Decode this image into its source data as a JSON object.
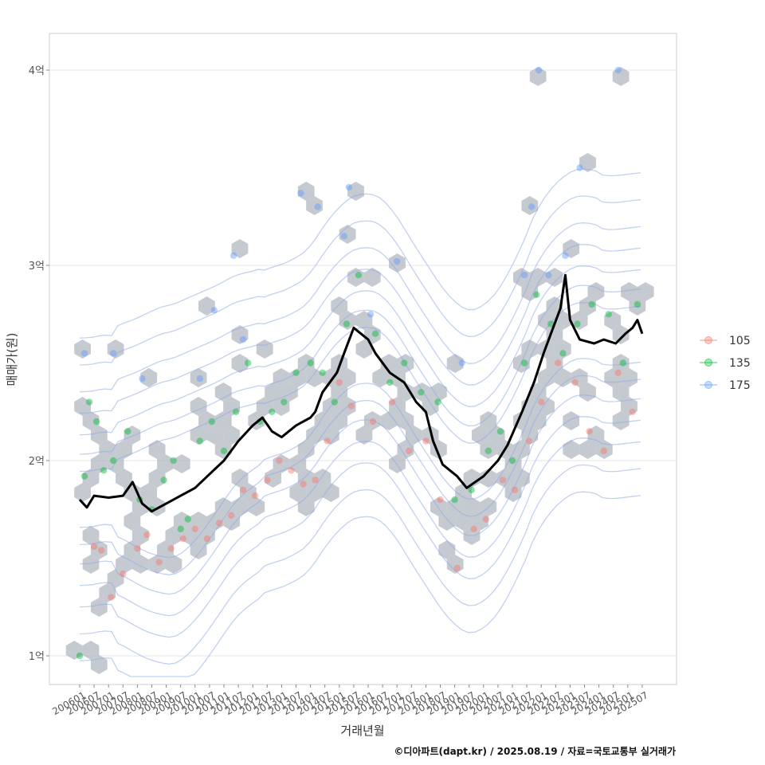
{
  "chart_data": {
    "type": "scatter",
    "title": "",
    "xlabel": "거래년월",
    "ylabel": "매매가(원)",
    "caption": "©디아파트(dapt.kr) / 2025.08.19 / 자료=국토교통부 실거래가",
    "ylim": [
      0.85,
      4.18
    ],
    "y_ticks": [
      {
        "value": 1,
        "label": "1억"
      },
      {
        "value": 2,
        "label": "2억"
      },
      {
        "value": 3,
        "label": "3억"
      },
      {
        "value": 4,
        "label": "4억"
      }
    ],
    "x_ticks": [
      "200601",
      "200607",
      "200701",
      "200707",
      "200801",
      "200807",
      "200901",
      "200907",
      "201001",
      "201007",
      "201101",
      "201107",
      "201201",
      "201207",
      "201301",
      "201307",
      "201401",
      "201407",
      "201501",
      "201507",
      "201601",
      "201607",
      "201701",
      "201707",
      "201801",
      "201807",
      "201901",
      "201907",
      "202001",
      "202007",
      "202101",
      "202107",
      "202201",
      "202207",
      "202301",
      "202307",
      "202401",
      "202407",
      "202501",
      "202507"
    ],
    "grid": true,
    "legend_position": "right",
    "series": [
      {
        "name": "105",
        "color": "#F8766D",
        "points": [
          [
            "2006-07",
            1.56
          ],
          [
            "2006-10",
            1.54
          ],
          [
            "2007-02",
            1.3
          ],
          [
            "2007-07",
            1.42
          ],
          [
            "2008-01",
            1.55
          ],
          [
            "2008-05",
            1.62
          ],
          [
            "2008-10",
            1.48
          ],
          [
            "2009-03",
            1.55
          ],
          [
            "2009-08",
            1.6
          ],
          [
            "2010-01",
            1.65
          ],
          [
            "2010-06",
            1.6
          ],
          [
            "2010-11",
            1.68
          ],
          [
            "2011-04",
            1.72
          ],
          [
            "2011-09",
            1.85
          ],
          [
            "2012-02",
            1.82
          ],
          [
            "2012-07",
            1.9
          ],
          [
            "2012-12",
            2.0
          ],
          [
            "2013-05",
            1.95
          ],
          [
            "2013-10",
            1.88
          ],
          [
            "2014-03",
            1.9
          ],
          [
            "2014-08",
            2.1
          ],
          [
            "2015-01",
            2.4
          ],
          [
            "2015-06",
            2.28
          ],
          [
            "2016-03",
            2.2
          ],
          [
            "2016-11",
            2.3
          ],
          [
            "2017-06",
            2.05
          ],
          [
            "2018-01",
            2.1
          ],
          [
            "2018-07",
            1.8
          ],
          [
            "2019-02",
            1.45
          ],
          [
            "2019-09",
            1.65
          ],
          [
            "2020-02",
            1.7
          ],
          [
            "2020-09",
            1.9
          ],
          [
            "2021-02",
            1.85
          ],
          [
            "2021-08",
            2.1
          ],
          [
            "2022-01",
            2.3
          ],
          [
            "2022-08",
            2.5
          ],
          [
            "2023-03",
            2.4
          ],
          [
            "2023-09",
            2.15
          ],
          [
            "2024-03",
            2.05
          ],
          [
            "2024-09",
            2.45
          ],
          [
            "2025-03",
            2.25
          ]
        ]
      },
      {
        "name": "135",
        "color": "#00BA38",
        "points": [
          [
            "2006-01",
            1.0
          ],
          [
            "2006-03",
            1.92
          ],
          [
            "2006-05",
            2.3
          ],
          [
            "2006-08",
            2.2
          ],
          [
            "2006-11",
            1.95
          ],
          [
            "2007-03",
            2.0
          ],
          [
            "2007-09",
            2.15
          ],
          [
            "2008-02",
            1.8
          ],
          [
            "2008-07",
            1.75
          ],
          [
            "2008-12",
            1.9
          ],
          [
            "2009-04",
            2.0
          ],
          [
            "2009-07",
            1.65
          ],
          [
            "2009-10",
            1.7
          ],
          [
            "2010-03",
            2.1
          ],
          [
            "2010-08",
            2.2
          ],
          [
            "2011-01",
            2.05
          ],
          [
            "2011-06",
            2.25
          ],
          [
            "2011-11",
            2.5
          ],
          [
            "2012-04",
            2.2
          ],
          [
            "2012-09",
            2.25
          ],
          [
            "2013-02",
            2.3
          ],
          [
            "2013-07",
            2.45
          ],
          [
            "2014-01",
            2.5
          ],
          [
            "2014-06",
            2.45
          ],
          [
            "2014-11",
            2.3
          ],
          [
            "2015-04",
            2.7
          ],
          [
            "2015-09",
            2.95
          ],
          [
            "2016-04",
            2.65
          ],
          [
            "2016-10",
            2.4
          ],
          [
            "2017-04",
            2.5
          ],
          [
            "2017-11",
            2.35
          ],
          [
            "2018-06",
            2.3
          ],
          [
            "2019-01",
            1.8
          ],
          [
            "2019-08",
            1.85
          ],
          [
            "2020-03",
            2.05
          ],
          [
            "2020-08",
            2.15
          ],
          [
            "2021-01",
            2.0
          ],
          [
            "2021-06",
            2.5
          ],
          [
            "2021-11",
            2.85
          ],
          [
            "2022-05",
            2.7
          ],
          [
            "2022-10",
            2.55
          ],
          [
            "2023-04",
            2.7
          ],
          [
            "2023-10",
            2.8
          ],
          [
            "2024-05",
            2.75
          ],
          [
            "2024-11",
            2.5
          ],
          [
            "2025-05",
            2.8
          ]
        ]
      },
      {
        "name": "175",
        "color": "#619CFF",
        "points": [
          [
            "2006-03",
            2.55
          ],
          [
            "2007-03",
            2.55
          ],
          [
            "2008-03",
            2.42
          ],
          [
            "2010-03",
            2.42
          ],
          [
            "2010-09",
            2.77
          ],
          [
            "2011-05",
            3.05
          ],
          [
            "2011-09",
            2.62
          ],
          [
            "2013-09",
            3.37
          ],
          [
            "2014-04",
            3.3
          ],
          [
            "2015-03",
            3.15
          ],
          [
            "2015-05",
            3.4
          ],
          [
            "2016-02",
            2.75
          ],
          [
            "2017-01",
            3.02
          ],
          [
            "2019-04",
            2.5
          ],
          [
            "2021-06",
            2.95
          ],
          [
            "2021-09",
            3.3
          ],
          [
            "2021-12",
            4.0
          ],
          [
            "2022-04",
            2.95
          ],
          [
            "2022-11",
            3.05
          ],
          [
            "2023-05",
            3.5
          ],
          [
            "2024-09",
            4.0
          ]
        ]
      }
    ],
    "trend_line": {
      "name": "moving-average",
      "color": "#000000",
      "points": [
        [
          "2006-01",
          1.8
        ],
        [
          "2006-04",
          1.76
        ],
        [
          "2006-07",
          1.82
        ],
        [
          "2007-01",
          1.81
        ],
        [
          "2007-07",
          1.82
        ],
        [
          "2007-11",
          1.89
        ],
        [
          "2008-03",
          1.78
        ],
        [
          "2008-07",
          1.74
        ],
        [
          "2009-01",
          1.78
        ],
        [
          "2009-07",
          1.82
        ],
        [
          "2010-01",
          1.86
        ],
        [
          "2010-07",
          1.93
        ],
        [
          "2011-01",
          2.0
        ],
        [
          "2011-07",
          2.1
        ],
        [
          "2012-01",
          2.18
        ],
        [
          "2012-05",
          2.22
        ],
        [
          "2012-09",
          2.15
        ],
        [
          "2013-01",
          2.12
        ],
        [
          "2013-07",
          2.18
        ],
        [
          "2014-01",
          2.22
        ],
        [
          "2014-03",
          2.25
        ],
        [
          "2014-06",
          2.35
        ],
        [
          "2014-12",
          2.45
        ],
        [
          "2015-03",
          2.55
        ],
        [
          "2015-07",
          2.68
        ],
        [
          "2016-01",
          2.62
        ],
        [
          "2016-04",
          2.55
        ],
        [
          "2016-10",
          2.45
        ],
        [
          "2017-04",
          2.4
        ],
        [
          "2017-09",
          2.3
        ],
        [
          "2018-01",
          2.25
        ],
        [
          "2018-04",
          2.1
        ],
        [
          "2018-08",
          1.98
        ],
        [
          "2019-02",
          1.92
        ],
        [
          "2019-06",
          1.86
        ],
        [
          "2020-01",
          1.92
        ],
        [
          "2020-07",
          2.0
        ],
        [
          "2020-11",
          2.08
        ],
        [
          "2021-05",
          2.25
        ],
        [
          "2021-10",
          2.4
        ],
        [
          "2022-02",
          2.55
        ],
        [
          "2022-05",
          2.65
        ],
        [
          "2022-09",
          2.78
        ],
        [
          "2022-11",
          2.95
        ],
        [
          "2023-01",
          2.72
        ],
        [
          "2023-05",
          2.62
        ],
        [
          "2023-11",
          2.6
        ],
        [
          "2024-03",
          2.62
        ],
        [
          "2024-08",
          2.6
        ],
        [
          "2024-12",
          2.65
        ],
        [
          "2025-03",
          2.68
        ],
        [
          "2025-05",
          2.72
        ],
        [
          "2025-07",
          2.65
        ]
      ]
    }
  }
}
